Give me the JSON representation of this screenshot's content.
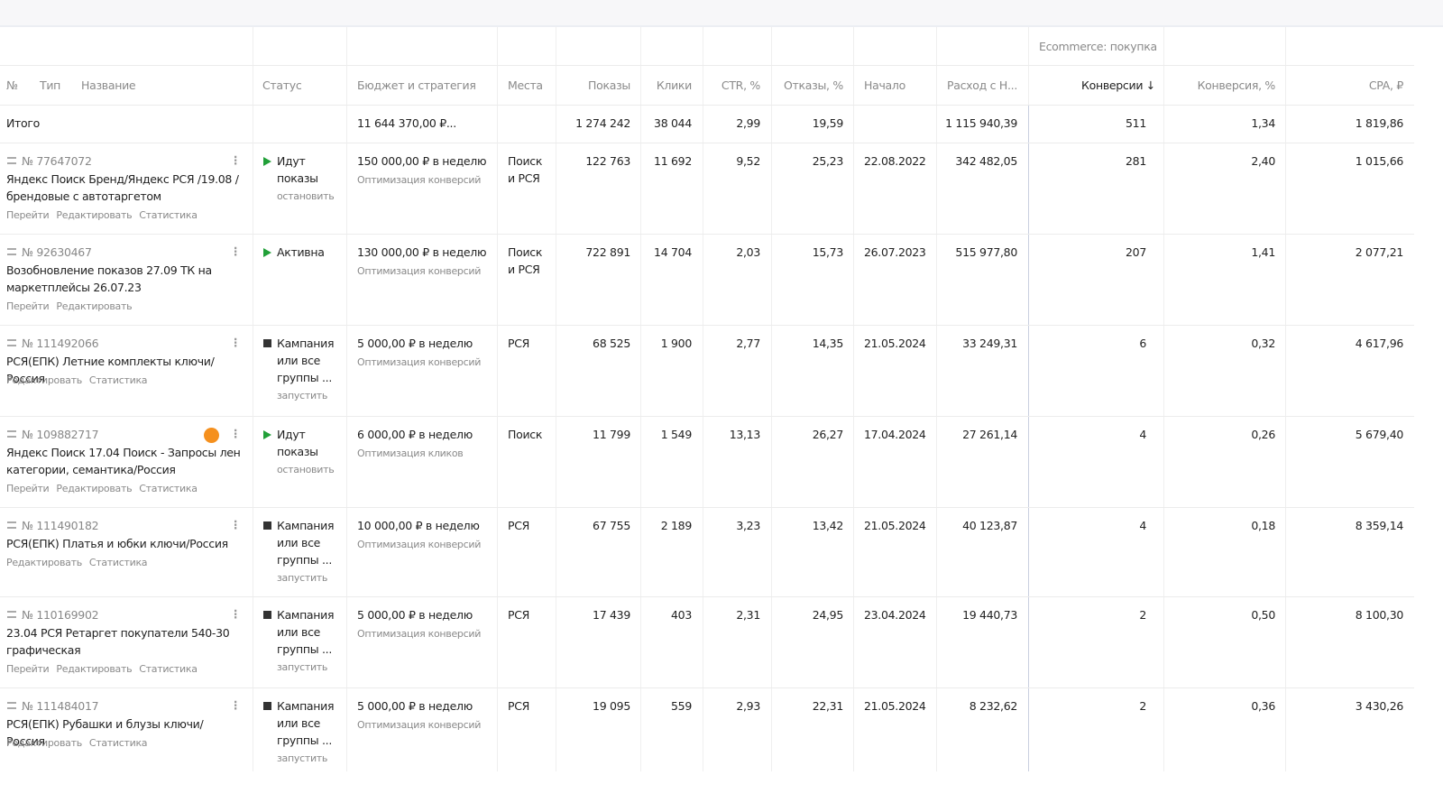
{
  "table": {
    "group_header": "Ecommerce: покупка",
    "columns": [
      "№",
      "Тип",
      "Название",
      "Статус",
      "Бюджет и стратегия",
      "Места",
      "Показы",
      "Клики",
      "CTR, %",
      "Отказы, %",
      "Начало",
      "Расход с Н...",
      "Конверсии ↓",
      "Конверсия, %",
      "CPA, ₽"
    ],
    "total": {
      "label": "Итого",
      "budget": "11 644 370,00 ₽...",
      "impressions": "1 274 242",
      "clicks": "38 044",
      "ctr": "2,99",
      "bounces": "19,59",
      "spend": "1 115 940,39",
      "conversions": "511",
      "conv_rate": "1,34",
      "cpa": "1 819,86"
    },
    "rows": [
      {
        "id": "№ 77647072",
        "name": "Яндекс Поиск Бренд/Яндекс РСЯ /19.08 / брендовые с автотаргетом",
        "links": [
          "Перейти",
          "Редактировать",
          "Статистика"
        ],
        "running": true,
        "status": "Идут показы",
        "action": "остановить",
        "budget": "150 000,00 ₽ в неделю",
        "strategy": "Оптимизация конверсий",
        "places": "Поиск и РСЯ",
        "impressions": "122 763",
        "clicks": "11 692",
        "ctr": "9,52",
        "bounces": "25,23",
        "start": "22.08.2022",
        "spend": "342 482,05",
        "conversions": "281",
        "conv_rate": "2,40",
        "cpa": "1 015,66"
      },
      {
        "id": "№ 92630467",
        "name": "Возобновление показов 27.09 ТК на маркетплейсы 26.07.23",
        "links": [
          "Перейти",
          "Редактировать"
        ],
        "running": true,
        "status": "Активна",
        "budget": "130 000,00 ₽ в неделю",
        "strategy": "Оптимизация конверсий",
        "places": "Поиск и РСЯ",
        "impressions": "722 891",
        "clicks": "14 704",
        "ctr": "2,03",
        "bounces": "15,73",
        "start": "26.07.2023",
        "spend": "515 977,80",
        "conversions": "207",
        "conv_rate": "1,41",
        "cpa": "2 077,21"
      },
      {
        "id": "№ 111492066",
        "name": "РСЯ(ЕПК) Летние комплекты ключи/ Россия",
        "links": [
          "Редактировать",
          "Статистика"
        ],
        "running": false,
        "status": "Кампания или все группы ...",
        "action": "запустить",
        "budget": "5 000,00 ₽ в неделю",
        "strategy": "Оптимизация конверсий",
        "places": "РСЯ",
        "impressions": "68 525",
        "clicks": "1 900",
        "ctr": "2,77",
        "bounces": "14,35",
        "start": "21.05.2024",
        "spend": "33 249,31",
        "conversions": "6",
        "conv_rate": "0,32",
        "cpa": "4 617,96"
      },
      {
        "id": "№ 109882717",
        "badge": true,
        "name": "Яндекс Поиск 17.04 Поиск - Запросы лен категории, семантика/Россия",
        "links": [
          "Перейти",
          "Редактировать",
          "Статистика"
        ],
        "running": true,
        "status": "Идут показы",
        "action": "остановить",
        "budget": "6 000,00 ₽ в неделю",
        "strategy": "Оптимизация кликов",
        "places": "Поиск",
        "impressions": "11 799",
        "clicks": "1 549",
        "ctr": "13,13",
        "bounces": "26,27",
        "start": "17.04.2024",
        "spend": "27 261,14",
        "conversions": "4",
        "conv_rate": "0,26",
        "cpa": "5 679,40"
      },
      {
        "id": "№ 111490182",
        "name": "РСЯ(ЕПК) Платья и юбки ключи/Россия",
        "links": [
          "Редактировать",
          "Статистика"
        ],
        "running": false,
        "status": "Кампания или все группы ...",
        "action": "запустить",
        "budget": "10 000,00 ₽ в неделю",
        "strategy": "Оптимизация конверсий",
        "places": "РСЯ",
        "impressions": "67 755",
        "clicks": "2 189",
        "ctr": "3,23",
        "bounces": "13,42",
        "start": "21.05.2024",
        "spend": "40 123,87",
        "conversions": "4",
        "conv_rate": "0,18",
        "cpa": "8 359,14"
      },
      {
        "id": "№ 110169902",
        "name": "23.04 РСЯ Ретаргет покупатели 540-30 графическая",
        "links": [
          "Перейти",
          "Редактировать",
          "Статистика"
        ],
        "running": false,
        "status": "Кампания или все группы ...",
        "action": "запустить",
        "budget": "5 000,00 ₽ в неделю",
        "strategy": "Оптимизация конверсий",
        "places": "РСЯ",
        "impressions": "17 439",
        "clicks": "403",
        "ctr": "2,31",
        "bounces": "24,95",
        "start": "23.04.2024",
        "spend": "19 440,73",
        "conversions": "2",
        "conv_rate": "0,50",
        "cpa": "8 100,30"
      },
      {
        "id": "№ 111484017",
        "name": "РСЯ(ЕПК) Рубашки и блузы ключи/ Россия",
        "links": [
          "Редактировать",
          "Статистика"
        ],
        "running": false,
        "status": "Кампания или все группы ...",
        "action": "запустить",
        "budget": "5 000,00 ₽ в неделю",
        "strategy": "Оптимизация конверсий",
        "places": "РСЯ",
        "impressions": "19 095",
        "clicks": "559",
        "ctr": "2,93",
        "bounces": "22,31",
        "start": "21.05.2024",
        "spend": "8 232,62",
        "conversions": "2",
        "conv_rate": "0,36",
        "cpa": "3 430,26"
      }
    ]
  }
}
